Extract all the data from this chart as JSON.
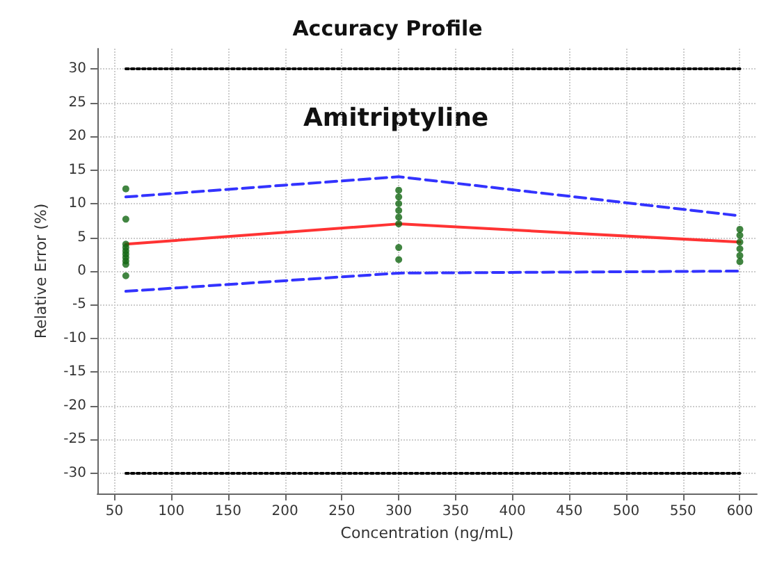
{
  "chart_data": {
    "type": "line",
    "title": "Accuracy Profile",
    "xlabel": "Concentration (ng/mL)",
    "ylabel": "Relative Error (%)",
    "annotations": [
      "Amitriptyline"
    ],
    "xlim": [
      35,
      615
    ],
    "xticks": [
      50,
      100,
      150,
      200,
      250,
      300,
      350,
      400,
      450,
      500,
      550,
      600
    ],
    "ylim": [
      -33,
      33
    ],
    "yticks": [
      -30,
      -25,
      -20,
      -15,
      -10,
      -5,
      0,
      5,
      10,
      15,
      20,
      25,
      30
    ],
    "grid": true,
    "series": [
      {
        "color": "#000000",
        "line_style": "dotted",
        "marker": "none",
        "x": [
          60,
          600
        ],
        "values": [
          30,
          30
        ]
      },
      {
        "color": "#000000",
        "line_style": "dotted",
        "marker": "none",
        "x": [
          60,
          600
        ],
        "values": [
          -30,
          -30
        ]
      },
      {
        "color": "#3333ff",
        "line_style": "dashed",
        "marker": "none",
        "x": [
          60,
          300,
          600
        ],
        "values": [
          11,
          14,
          8.2
        ]
      },
      {
        "color": "#3333ff",
        "line_style": "dashed",
        "marker": "none",
        "x": [
          60,
          300,
          600
        ],
        "values": [
          -3,
          -0.3,
          0
        ]
      },
      {
        "color": "#ff3333",
        "line_style": "solid",
        "marker": "none",
        "x": [
          60,
          300,
          600
        ],
        "values": [
          4,
          7,
          4.3
        ]
      },
      {
        "type": "scatter",
        "color": "#116611",
        "marker": "circle",
        "x": [
          60,
          60,
          60,
          60,
          60,
          60,
          60,
          60,
          60,
          60,
          300,
          300,
          300,
          300,
          300,
          300,
          300,
          300,
          600,
          600,
          600,
          600,
          600,
          600
        ],
        "values": [
          12.2,
          7.7,
          4,
          3.5,
          3,
          2.5,
          2,
          1.5,
          1,
          -0.7,
          12,
          11,
          10,
          9,
          8,
          7,
          3.5,
          1.7,
          6.2,
          5.3,
          4.3,
          3.3,
          2.3,
          1.4
        ]
      }
    ]
  }
}
